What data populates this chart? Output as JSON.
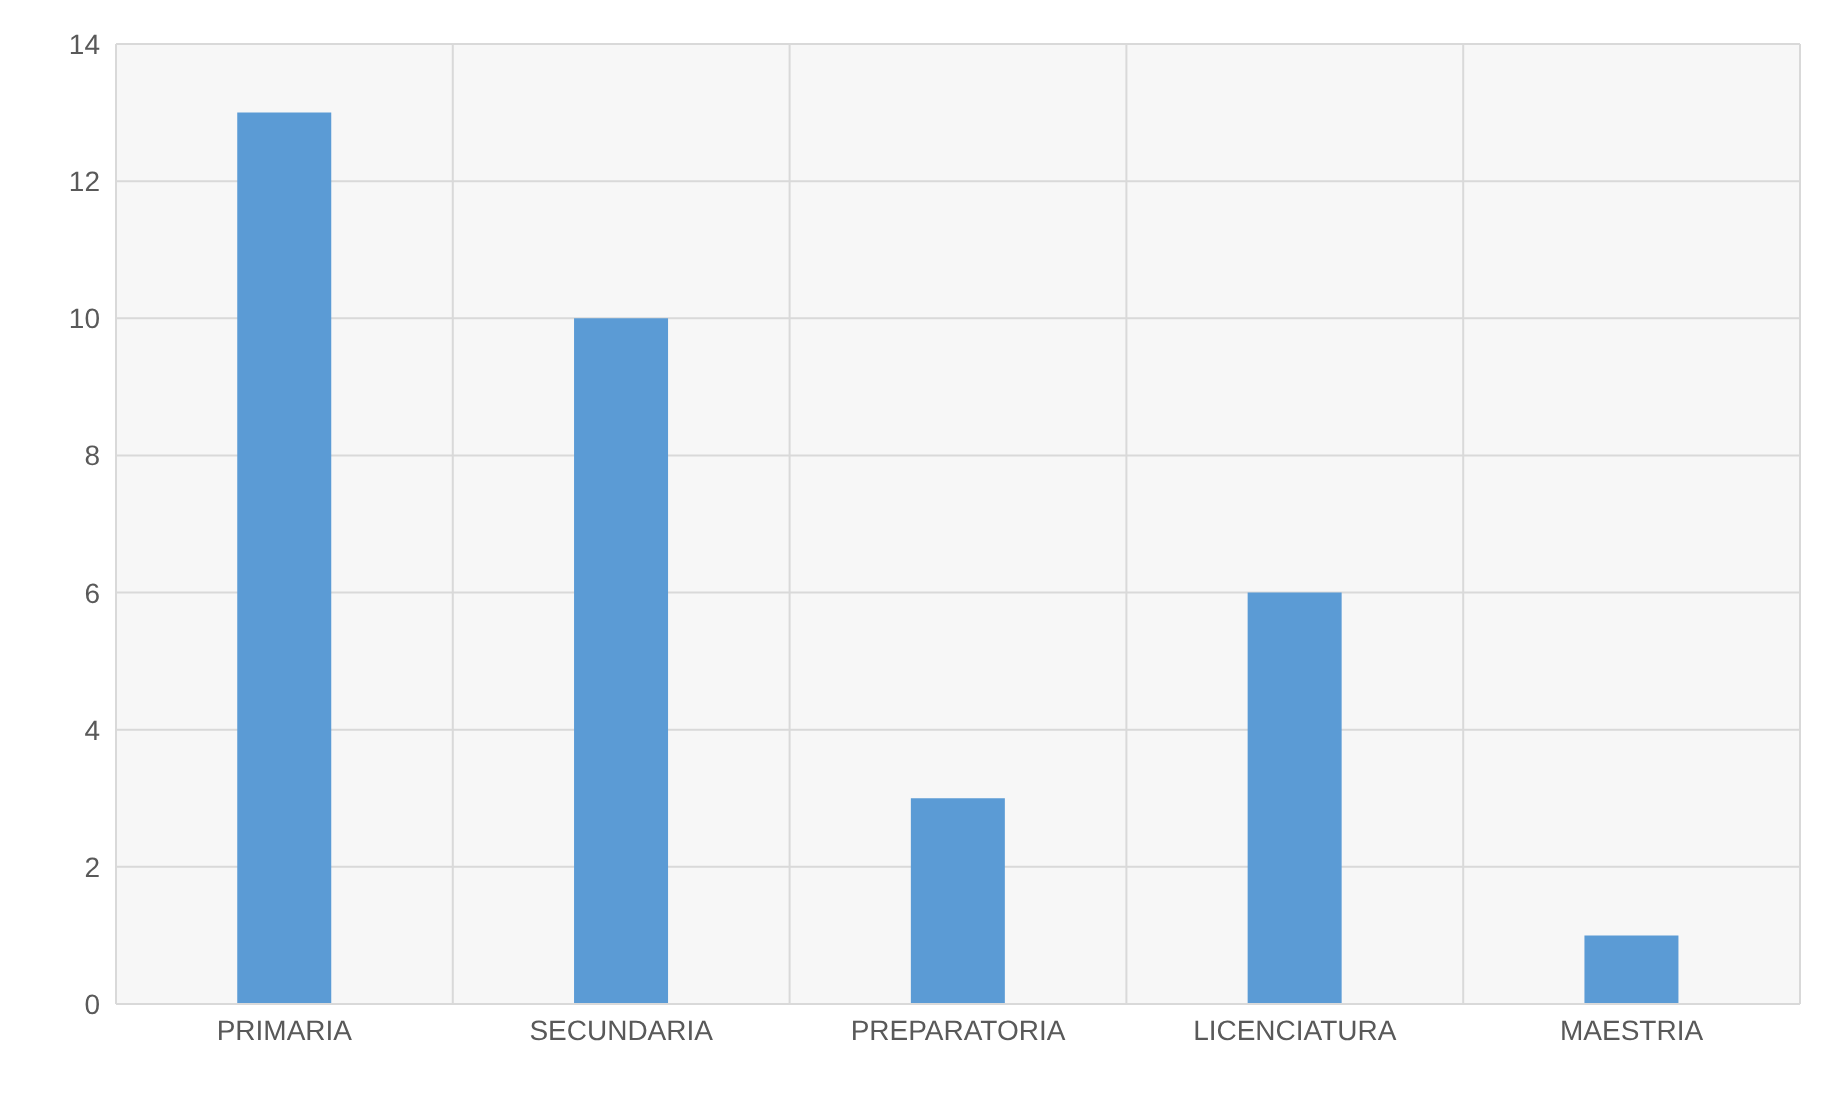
{
  "chart_data": {
    "type": "bar",
    "categories": [
      "PRIMARIA",
      "SECUNDARIA",
      "PREPARATORIA",
      "LICENCIATURA",
      "MAESTRIA"
    ],
    "values": [
      13,
      10,
      3,
      6,
      1
    ],
    "color": "#5b9bd5",
    "ylim": [
      0,
      14
    ],
    "yticks": [
      0,
      2,
      4,
      6,
      8,
      10,
      12,
      14
    ],
    "grid": true
  }
}
